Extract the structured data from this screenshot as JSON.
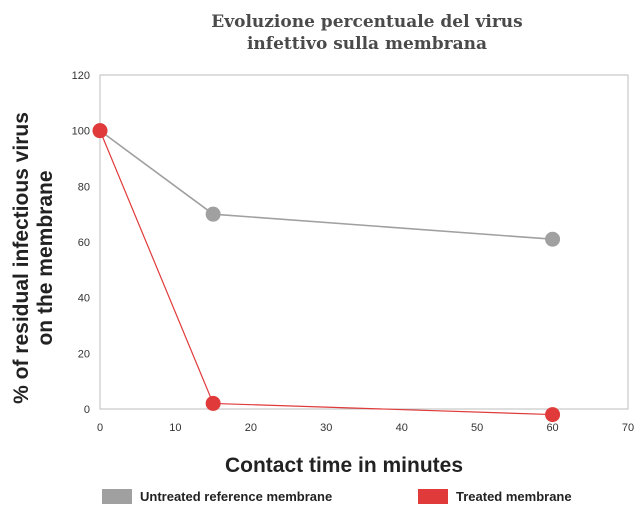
{
  "chart_data": {
    "type": "line",
    "title_lines": [
      "Evoluzione percentuale del virus",
      "infettivo sulla membrana"
    ],
    "xlabel": "Contact time in minutes",
    "ylabel_lines": [
      "% of residual infectious virus",
      "on the membrane"
    ],
    "xlim": [
      0,
      70
    ],
    "ylim": [
      0,
      120
    ],
    "x_ticks": [
      0,
      10,
      20,
      30,
      40,
      50,
      60,
      70
    ],
    "y_ticks": [
      0,
      20,
      40,
      60,
      80,
      100,
      120
    ],
    "grid": false,
    "legend_position": "bottom",
    "series": [
      {
        "name": "Untreated reference membrane",
        "color": "#a0a0a0",
        "x": [
          0,
          15,
          60
        ],
        "y": [
          100,
          70,
          61
        ]
      },
      {
        "name": "Treated membrane",
        "color": "#e03a3a",
        "x": [
          0,
          15,
          60
        ],
        "y": [
          100,
          2,
          -2
        ]
      }
    ]
  }
}
